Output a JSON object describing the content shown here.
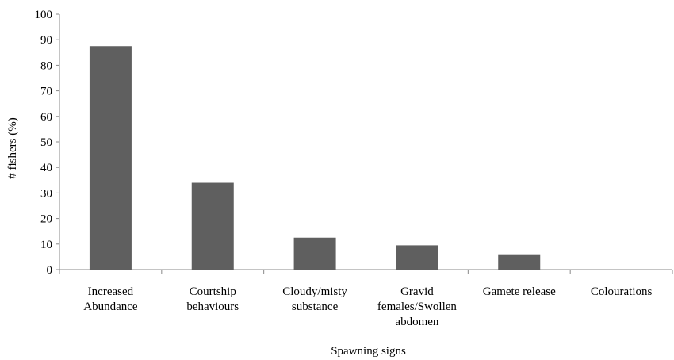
{
  "chart_data": {
    "type": "bar",
    "categories": [
      [
        "Increased",
        "Abundance"
      ],
      [
        "Courtship",
        "behaviours"
      ],
      [
        "Cloudy/misty",
        "substance"
      ],
      [
        "Gravid",
        "females/Swollen",
        "abdomen"
      ],
      [
        "Gamete release"
      ],
      [
        "Colourations"
      ]
    ],
    "values": [
      87.5,
      34,
      12.5,
      9.5,
      6,
      0
    ],
    "title": "",
    "xlabel": "Spawning signs",
    "ylabel": "# fishers (%)",
    "ylim": [
      0,
      100
    ],
    "yticks": [
      0,
      10,
      20,
      30,
      40,
      50,
      60,
      70,
      80,
      90,
      100
    ],
    "bar_color": "#5f5f5f",
    "grid": false,
    "legend": "none"
  }
}
